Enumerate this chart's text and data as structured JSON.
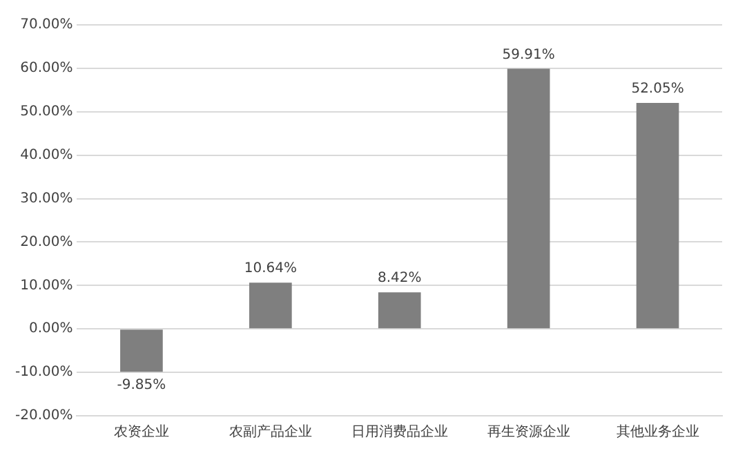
{
  "chart_data": {
    "type": "bar",
    "categories": [
      "农资企业",
      "农副产品企业",
      "日用消费品企业",
      "再生资源企业",
      "其他业务企业"
    ],
    "values": [
      -9.85,
      10.64,
      8.42,
      59.91,
      52.05
    ],
    "color": "#7f7f7f",
    "value_labels": [
      "-9.85%",
      "10.64%",
      "8.42%",
      "59.91%",
      "52.05%"
    ],
    "ylim": [
      -20,
      70
    ],
    "yticks": [
      {
        "value": -20,
        "label": "-20.00%"
      },
      {
        "value": -10,
        "label": "-10.00%"
      },
      {
        "value": 0,
        "label": "0.00%"
      },
      {
        "value": 10,
        "label": "10.00%"
      },
      {
        "value": 20,
        "label": "20.00%"
      },
      {
        "value": 30,
        "label": "30.00%"
      },
      {
        "value": 40,
        "label": "40.00%"
      },
      {
        "value": 50,
        "label": "50.00%"
      },
      {
        "value": 60,
        "label": "60.00%"
      },
      {
        "value": 70,
        "label": "70.00%"
      }
    ],
    "grid": "y"
  }
}
